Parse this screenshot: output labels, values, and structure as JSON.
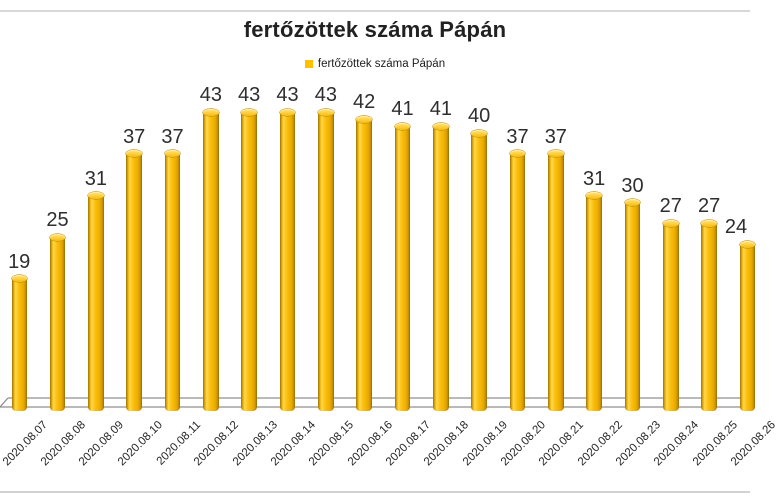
{
  "title": "fertőzöttek száma Pápán",
  "legend": {
    "label": "fertőzöttek száma Pápán",
    "marker_color": "#FFC000",
    "position": "top"
  },
  "colors": {
    "bar": "#FFC113",
    "bar_edge_dark": "#8F6C08",
    "bar_highlight": "#FFD84F",
    "axis_line": "#8f8f8f",
    "page_border": "#d8d8d8",
    "text": "#262626"
  },
  "chart_data": {
    "type": "bar",
    "style": "3d-cylinder",
    "title": "fertőzöttek száma Pápán",
    "series_name": "fertőzöttek száma Pápán",
    "categories": [
      "2020.08.07",
      "2020.08.08",
      "2020.08.09",
      "2020.08.10",
      "2020.08.11",
      "2020.08.12",
      "2020.08.13",
      "2020.08.14",
      "2020.08.15",
      "2020.08.16",
      "2020.08.17",
      "2020.08.18",
      "2020.08.19",
      "2020.08.20",
      "2020.08.21",
      "2020.08.22",
      "2020.08.23",
      "2020.08.24",
      "2020.08.25",
      "2020.08.26"
    ],
    "values": [
      19,
      25,
      31,
      37,
      37,
      43,
      43,
      43,
      43,
      42,
      41,
      41,
      40,
      37,
      37,
      31,
      30,
      27,
      27,
      24
    ],
    "xlabel": "",
    "ylabel": "",
    "ylim": [
      0,
      43
    ],
    "grid": false,
    "data_labels": true,
    "legend_position": "top",
    "x_tick_rotation_deg": 45
  }
}
